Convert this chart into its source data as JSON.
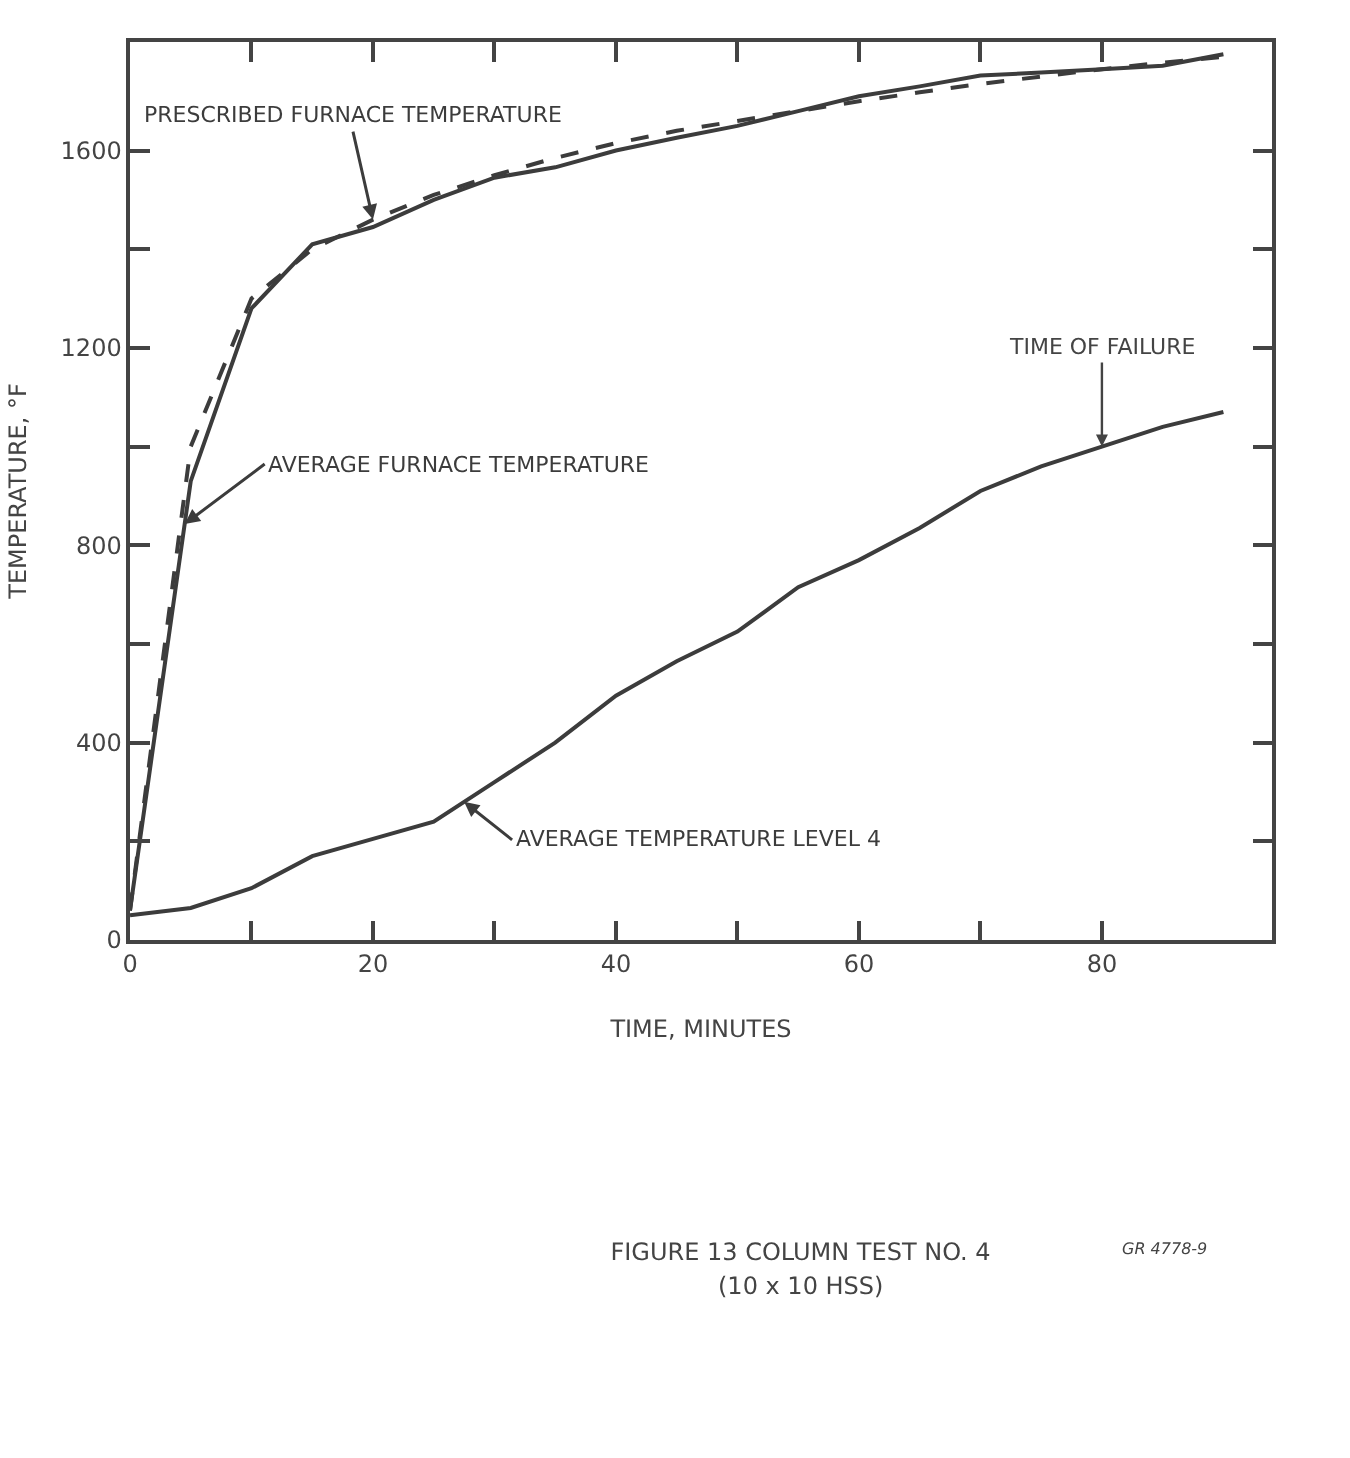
{
  "chart_data": {
    "type": "line",
    "title": "FIGURE 13 COLUMN TEST NO. 4",
    "subtitle": "(10 x 10 HSS)",
    "xlabel": "TIME, MINUTES",
    "ylabel": "TEMPERATURE, °F",
    "x": [
      0,
      5,
      10,
      15,
      20,
      25,
      30,
      35,
      40,
      45,
      50,
      55,
      60,
      65,
      70,
      75,
      80,
      85,
      90
    ],
    "series": [
      {
        "name": "PRESCRIBED FURNACE TEMPERATURE",
        "color": "#3c3c3c",
        "line_style": "dashed",
        "values": [
          60,
          1000,
          1300,
          1400,
          1460,
          1510,
          1550,
          1585,
          1615,
          1640,
          1660,
          1680,
          1700,
          1718,
          1735,
          1750,
          1765,
          1778,
          1790
        ]
      },
      {
        "name": "AVERAGE FURNACE TEMPERATURE",
        "color": "#3c3c3c",
        "values": [
          60,
          930,
          1280,
          1410,
          1445,
          1500,
          1545,
          1566,
          1600,
          1626,
          1650,
          1680,
          1710,
          1730,
          1752,
          1758,
          1765,
          1772,
          1795
        ]
      },
      {
        "name": "AVERAGE TEMPERATURE LEVEL 4",
        "color": "#3c3c3c",
        "values": [
          50,
          65,
          105,
          170,
          205,
          240,
          320,
          400,
          495,
          565,
          625,
          715,
          770,
          835,
          910,
          960,
          1000,
          1040,
          1070
        ]
      }
    ],
    "xlim": [
      0,
      94
    ],
    "xticks": [
      0,
      {
        "value": 10,
        "label": null
      },
      20,
      {
        "value": 30,
        "label": null
      },
      40,
      {
        "value": 50,
        "label": null
      },
      60,
      {
        "value": 70,
        "label": null
      },
      80
    ],
    "ylim": [
      0,
      1820
    ],
    "yticks": [
      0,
      {
        "value": 200,
        "label": null
      },
      400,
      {
        "value": 600,
        "label": null
      },
      800,
      {
        "value": 1000,
        "label": null
      },
      1200,
      {
        "value": 1400,
        "label": null
      },
      1600
    ],
    "annotations": [
      {
        "text": "TIME OF FAILURE",
        "x": 80,
        "y": 1000
      },
      "GR 4778-9"
    ],
    "line_style": "solid",
    "grid": false,
    "legend": false
  }
}
